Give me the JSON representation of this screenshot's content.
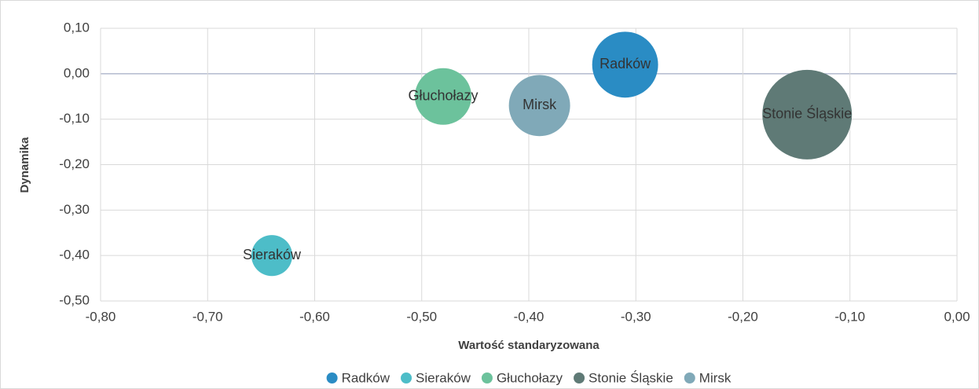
{
  "chart_data": {
    "type": "bubble",
    "xlabel": "Wartość standaryzowana",
    "ylabel": "Dynamika",
    "xlim": [
      -0.8,
      0
    ],
    "ylim": [
      -0.5,
      0.1
    ],
    "xticks": [
      {
        "value": -0.8,
        "label": "-0,80"
      },
      {
        "value": -0.7,
        "label": "-0,70"
      },
      {
        "value": -0.6,
        "label": "-0,60"
      },
      {
        "value": -0.5,
        "label": "-0,50"
      },
      {
        "value": -0.4,
        "label": "-0,40"
      },
      {
        "value": -0.3,
        "label": "-0,30"
      },
      {
        "value": -0.2,
        "label": "-0,20"
      },
      {
        "value": -0.1,
        "label": "-0,10"
      },
      {
        "value": 0,
        "label": "0,00"
      }
    ],
    "yticks": [
      {
        "value": 0.1,
        "label": "0,10"
      },
      {
        "value": 0,
        "label": "0,00"
      },
      {
        "value": -0.1,
        "label": "-0,10"
      },
      {
        "value": -0.2,
        "label": "-0,20"
      },
      {
        "value": -0.3,
        "label": "-0,30"
      },
      {
        "value": -0.4,
        "label": "-0,40"
      },
      {
        "value": -0.5,
        "label": "-0,50"
      }
    ],
    "grid": true,
    "legend": "bottom",
    "series": [
      {
        "name": "Radków",
        "color": "#2a8cc4",
        "x": -0.31,
        "y": 0.02,
        "size": 17.6
      },
      {
        "name": "Sieraków",
        "color": "#4dbdc8",
        "x": -0.64,
        "y": -0.4,
        "size": 6.8
      },
      {
        "name": "Głuchołazy",
        "color": "#6cc29c",
        "x": -0.48,
        "y": -0.05,
        "size": 13
      },
      {
        "name": "Stonie Śląskie",
        "color": "#5f7a76",
        "x": -0.14,
        "y": -0.09,
        "size": 32.5
      },
      {
        "name": "Mirsk",
        "color": "#80a9b8",
        "x": -0.39,
        "y": -0.07,
        "size": 15.2
      }
    ]
  }
}
